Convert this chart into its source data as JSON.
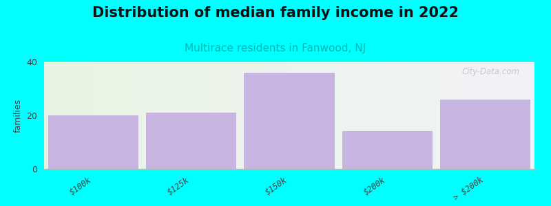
{
  "title": "Distribution of median family income in 2022",
  "subtitle": "Multirace residents in Fanwood, NJ",
  "categories": [
    "$100k",
    "$125k",
    "$150k",
    "$200k",
    "> $200k"
  ],
  "values": [
    20,
    21,
    36,
    14,
    26
  ],
  "bar_color": "#c8b4e0",
  "background_color": "#00ffff",
  "plot_bg_left_color": "#e8f5e2",
  "plot_bg_right_color": "#f0f0f0",
  "ylabel": "families",
  "ylim": [
    0,
    40
  ],
  "yticks": [
    0,
    20,
    40
  ],
  "title_fontsize": 15,
  "subtitle_fontsize": 11,
  "subtitle_color": "#00b8b8",
  "watermark": "City-Data.com",
  "bar_width": 0.92
}
